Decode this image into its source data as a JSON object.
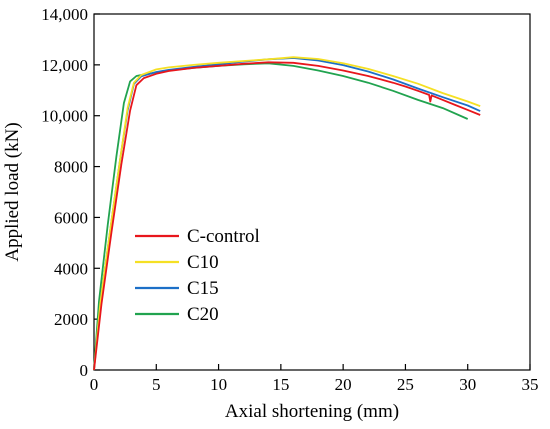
{
  "chart_data": {
    "type": "line",
    "title": "",
    "xlabel": "Axial shortening (mm)",
    "ylabel": "Applied load (kN)",
    "xlim": [
      0,
      35
    ],
    "ylim": [
      0,
      14000
    ],
    "x_ticks": [
      0,
      5,
      10,
      15,
      20,
      25,
      30,
      35
    ],
    "y_ticks": [
      0,
      2000,
      4000,
      6000,
      8000,
      10000,
      12000,
      14000
    ],
    "x_tick_labels": [
      "0",
      "5",
      "10",
      "15",
      "20",
      "25",
      "30",
      "35"
    ],
    "y_tick_labels": [
      "0",
      "2000",
      "4000",
      "6000",
      "8000",
      "10,000",
      "12,000",
      "14,000"
    ],
    "grid": false,
    "legend_position": "bottom-left",
    "series": [
      {
        "name": "C-control",
        "color": "#e8161c",
        "points": [
          [
            0,
            0
          ],
          [
            0.6,
            2600
          ],
          [
            1.4,
            5400
          ],
          [
            2.2,
            8100
          ],
          [
            2.9,
            10200
          ],
          [
            3.4,
            11200
          ],
          [
            4,
            11480
          ],
          [
            5,
            11650
          ],
          [
            6,
            11760
          ],
          [
            8,
            11880
          ],
          [
            10,
            11960
          ],
          [
            12,
            12040
          ],
          [
            14,
            12100
          ],
          [
            16,
            12080
          ],
          [
            18,
            11960
          ],
          [
            20,
            11780
          ],
          [
            22,
            11560
          ],
          [
            24,
            11300
          ],
          [
            25,
            11150
          ],
          [
            26,
            10980
          ],
          [
            26.9,
            10820
          ],
          [
            27,
            10560
          ],
          [
            27.1,
            10800
          ],
          [
            28,
            10620
          ],
          [
            29,
            10420
          ],
          [
            30,
            10230
          ],
          [
            31,
            10030
          ]
        ]
      },
      {
        "name": "C10",
        "color": "#f5e024",
        "points": [
          [
            0,
            0
          ],
          [
            0.5,
            2600
          ],
          [
            1.3,
            5500
          ],
          [
            2.1,
            8300
          ],
          [
            2.7,
            10300
          ],
          [
            3.2,
            11300
          ],
          [
            3.8,
            11600
          ],
          [
            5,
            11820
          ],
          [
            6,
            11900
          ],
          [
            8,
            12000
          ],
          [
            10,
            12080
          ],
          [
            12,
            12150
          ],
          [
            14,
            12220
          ],
          [
            16,
            12300
          ],
          [
            18,
            12230
          ],
          [
            20,
            12060
          ],
          [
            22,
            11840
          ],
          [
            24,
            11560
          ],
          [
            26,
            11260
          ],
          [
            28,
            10890
          ],
          [
            30,
            10560
          ],
          [
            31,
            10380
          ]
        ]
      },
      {
        "name": "C15",
        "color": "#1c6fc7",
        "points": [
          [
            0,
            0
          ],
          [
            0.5,
            2600
          ],
          [
            1.3,
            5500
          ],
          [
            2.1,
            8300
          ],
          [
            2.7,
            10200
          ],
          [
            3.2,
            11250
          ],
          [
            3.8,
            11550
          ],
          [
            5,
            11720
          ],
          [
            6,
            11800
          ],
          [
            8,
            11920
          ],
          [
            10,
            12020
          ],
          [
            12,
            12130
          ],
          [
            14,
            12220
          ],
          [
            16,
            12270
          ],
          [
            18,
            12170
          ],
          [
            20,
            11990
          ],
          [
            22,
            11740
          ],
          [
            24,
            11430
          ],
          [
            26,
            11070
          ],
          [
            28,
            10730
          ],
          [
            30,
            10400
          ],
          [
            31,
            10180
          ]
        ]
      },
      {
        "name": "C20",
        "color": "#21a34f",
        "points": [
          [
            0,
            0
          ],
          [
            0.4,
            2700
          ],
          [
            1.1,
            5700
          ],
          [
            1.8,
            8400
          ],
          [
            2.4,
            10500
          ],
          [
            2.9,
            11350
          ],
          [
            3.4,
            11560
          ],
          [
            4,
            11620
          ],
          [
            6,
            11780
          ],
          [
            8,
            11880
          ],
          [
            10,
            11960
          ],
          [
            12,
            12020
          ],
          [
            14,
            12060
          ],
          [
            16,
            11960
          ],
          [
            18,
            11780
          ],
          [
            20,
            11560
          ],
          [
            22,
            11300
          ],
          [
            24,
            10980
          ],
          [
            26,
            10620
          ],
          [
            28,
            10300
          ],
          [
            30,
            9870
          ]
        ]
      }
    ]
  }
}
